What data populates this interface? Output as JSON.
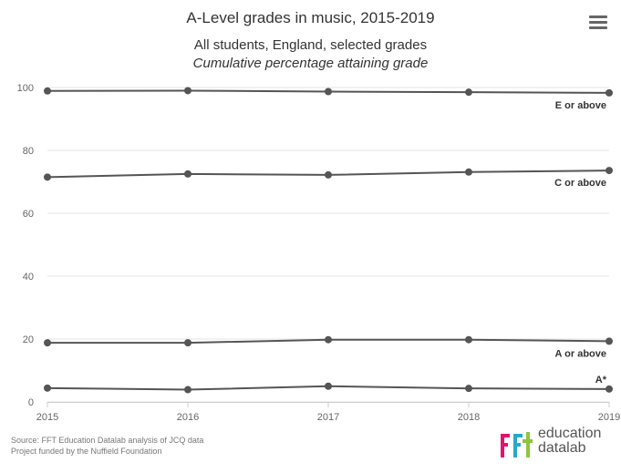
{
  "header": {
    "title": "A-Level grades in music, 2015-2019",
    "subtitle": "All students, England, selected grades",
    "subtitle2": "Cumulative percentage attaining grade"
  },
  "menu": {
    "icon": "hamburger-menu-icon"
  },
  "chart_data": {
    "type": "line",
    "categories": [
      "2015",
      "2016",
      "2017",
      "2018",
      "2019"
    ],
    "ylim": [
      0,
      100
    ],
    "yticks": [
      0,
      20,
      40,
      60,
      80,
      100
    ],
    "grid": true,
    "series": [
      {
        "name": "E or above",
        "values": [
          98.9,
          99.0,
          98.7,
          98.5,
          98.3
        ]
      },
      {
        "name": "C or above",
        "values": [
          71.5,
          72.5,
          72.2,
          73.1,
          73.6
        ]
      },
      {
        "name": "A or above",
        "values": [
          18.8,
          18.8,
          19.8,
          19.8,
          19.3
        ]
      },
      {
        "name": "A*",
        "values": [
          4.4,
          3.9,
          5.0,
          4.3,
          4.1
        ]
      }
    ],
    "line_color": "#555555"
  },
  "footer": {
    "source_line1": "Source: FFT Education Datalab analysis of JCQ data",
    "source_line2": "Project funded by the Nuffield Foundation",
    "logo_word1": "education",
    "logo_word2": "datalab",
    "logo_mark": "ffl",
    "logo_colors": [
      "#e5126f",
      "#2aa8c9",
      "#8cc63f"
    ]
  }
}
